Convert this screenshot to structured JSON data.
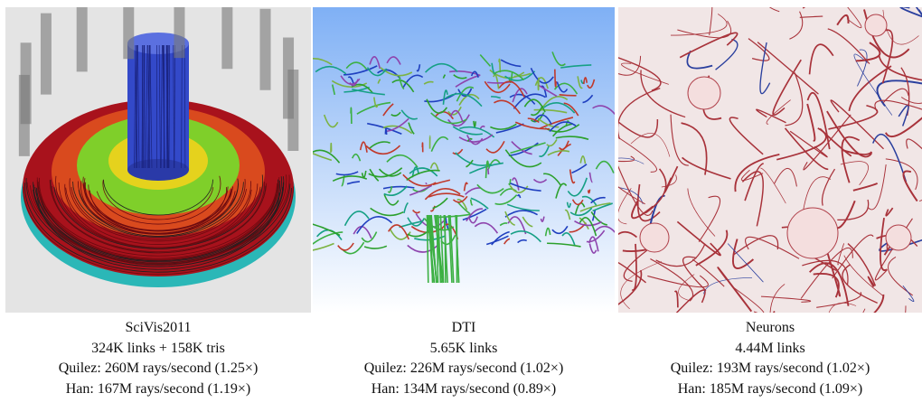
{
  "panels": [
    {
      "title": "SciVis2011",
      "size": "324K links + 158K tris",
      "quilez": "Quilez: 260M rays/second (1.25×)",
      "han": "Han: 167M rays/second (1.19×)"
    },
    {
      "title": "DTI",
      "size": "5.65K links",
      "quilez": "Quilez: 226M rays/second (1.02×)",
      "han": "Han: 134M rays/second (0.89×)"
    },
    {
      "title": "Neurons",
      "size": "4.44M links",
      "quilez": "Quilez: 193M rays/second (1.02×)",
      "han": "Han: 185M rays/second (1.09×)"
    }
  ]
}
